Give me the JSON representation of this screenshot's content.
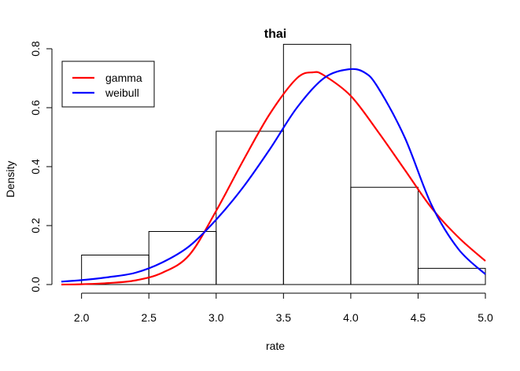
{
  "chart_data": {
    "type": "histogram",
    "title": "thai",
    "xlabel": "rate",
    "ylabel": "Density",
    "xlim": [
      1.85,
      5.0
    ],
    "ylim": [
      0,
      0.8
    ],
    "x_ticks": [
      "2.0",
      "2.5",
      "3.0",
      "3.5",
      "4.0",
      "4.5",
      "5.0"
    ],
    "y_ticks": [
      "0.0",
      "0.2",
      "0.4",
      "0.6",
      "0.8"
    ],
    "grid": false,
    "legend_position": "top-left",
    "bins": [
      {
        "start": 2.0,
        "end": 2.5,
        "density": 0.1
      },
      {
        "start": 2.5,
        "end": 3.0,
        "density": 0.18
      },
      {
        "start": 3.0,
        "end": 3.5,
        "density": 0.52
      },
      {
        "start": 3.5,
        "end": 4.0,
        "density": 0.815
      },
      {
        "start": 4.0,
        "end": 4.5,
        "density": 0.33
      },
      {
        "start": 4.5,
        "end": 5.0,
        "density": 0.055
      }
    ],
    "series": [
      {
        "name": "gamma",
        "color": "#ff0000",
        "points": [
          [
            1.85,
            0.0
          ],
          [
            2.0,
            0.001
          ],
          [
            2.2,
            0.005
          ],
          [
            2.4,
            0.014
          ],
          [
            2.6,
            0.04
          ],
          [
            2.8,
            0.1
          ],
          [
            3.0,
            0.25
          ],
          [
            3.2,
            0.42
          ],
          [
            3.4,
            0.58
          ],
          [
            3.6,
            0.7
          ],
          [
            3.72,
            0.72
          ],
          [
            3.8,
            0.71
          ],
          [
            4.0,
            0.64
          ],
          [
            4.2,
            0.52
          ],
          [
            4.4,
            0.39
          ],
          [
            4.6,
            0.26
          ],
          [
            4.8,
            0.16
          ],
          [
            5.0,
            0.08
          ]
        ]
      },
      {
        "name": "weibull",
        "color": "#0000ff",
        "points": [
          [
            1.85,
            0.01
          ],
          [
            2.0,
            0.015
          ],
          [
            2.2,
            0.025
          ],
          [
            2.4,
            0.04
          ],
          [
            2.6,
            0.075
          ],
          [
            2.8,
            0.13
          ],
          [
            3.0,
            0.22
          ],
          [
            3.2,
            0.33
          ],
          [
            3.4,
            0.46
          ],
          [
            3.6,
            0.6
          ],
          [
            3.8,
            0.7
          ],
          [
            3.98,
            0.73
          ],
          [
            4.1,
            0.72
          ],
          [
            4.2,
            0.67
          ],
          [
            4.4,
            0.5
          ],
          [
            4.6,
            0.27
          ],
          [
            4.8,
            0.12
          ],
          [
            5.0,
            0.035
          ]
        ]
      }
    ]
  }
}
